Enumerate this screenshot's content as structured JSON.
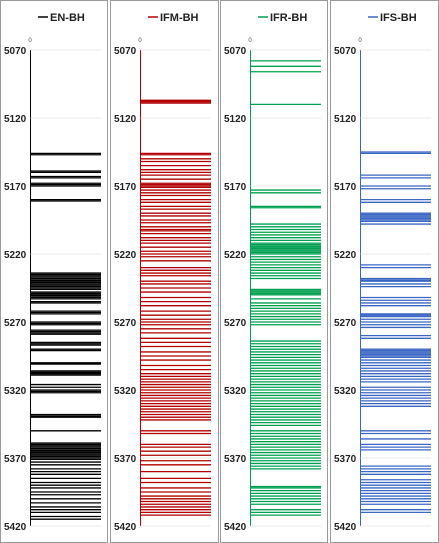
{
  "chart_data": [
    {
      "type": "event-strip",
      "legend": "EN-BH",
      "color": "#000000",
      "x_tick": "0",
      "ylim": [
        5070,
        5420
      ],
      "yticks": [
        "5070",
        "5120",
        "5170",
        "5220",
        "5270",
        "5320",
        "5370",
        "5420"
      ],
      "events": [
        5146,
        5147,
        5159,
        5160,
        5163,
        5164,
        5168,
        5169,
        5170,
        5180,
        5181,
        5234,
        5235,
        5236,
        5237,
        5238,
        5239,
        5240,
        5241,
        5242,
        5243,
        5244,
        5245,
        5246,
        5248,
        5249,
        5250,
        5251,
        5252,
        5253,
        5255,
        5256,
        5262,
        5263,
        5264,
        5270,
        5271,
        5272,
        5276,
        5277,
        5278,
        5279,
        5285,
        5286,
        5287,
        5290,
        5291,
        5300,
        5301,
        5306,
        5307,
        5308,
        5309,
        5316,
        5318,
        5320,
        5321,
        5322,
        5338,
        5339,
        5340,
        5350,
        5359,
        5360,
        5361,
        5362,
        5363,
        5364,
        5365,
        5366,
        5367,
        5368,
        5369,
        5370,
        5371,
        5373,
        5375,
        5378,
        5380,
        5382,
        5385,
        5388,
        5390,
        5392,
        5395,
        5397,
        5400,
        5403,
        5406,
        5408,
        5410,
        5413,
        5415
      ]
    },
    {
      "type": "event-strip",
      "legend": "IFM-BH",
      "color": "#b00000",
      "x_tick": "0",
      "ylim": [
        5070,
        5420
      ],
      "yticks": [
        "5070",
        "5120",
        "5170",
        "5220",
        "5270",
        "5320",
        "5370",
        "5420"
      ],
      "events": [
        5107,
        5108,
        5109,
        5146,
        5147,
        5150,
        5152,
        5155,
        5158,
        5160,
        5162,
        5165,
        5168,
        5169,
        5170,
        5171,
        5173,
        5175,
        5177,
        5180,
        5182,
        5185,
        5187,
        5190,
        5192,
        5195,
        5197,
        5200,
        5202,
        5203,
        5205,
        5208,
        5210,
        5212,
        5215,
        5218,
        5220,
        5222,
        5225,
        5230,
        5232,
        5234,
        5236,
        5240,
        5242,
        5245,
        5248,
        5252,
        5255,
        5258,
        5262,
        5265,
        5268,
        5270,
        5272,
        5275,
        5278,
        5282,
        5285,
        5288,
        5292,
        5295,
        5298,
        5302,
        5305,
        5308,
        5310,
        5312,
        5314,
        5316,
        5318,
        5320,
        5322,
        5324,
        5326,
        5328,
        5330,
        5332,
        5334,
        5336,
        5338,
        5340,
        5342,
        5350,
        5352,
        5360,
        5362,
        5365,
        5368,
        5372,
        5375,
        5380,
        5385,
        5388,
        5392,
        5395,
        5398,
        5400,
        5402,
        5404,
        5406,
        5408,
        5410,
        5412
      ]
    },
    {
      "type": "event-strip",
      "legend": "IFR-BH",
      "color": "#00a050",
      "x_tick": "0",
      "ylim": [
        5070,
        5420
      ],
      "yticks": [
        "5070",
        "5120",
        "5170",
        "5220",
        "5270",
        "5320",
        "5370",
        "5420"
      ],
      "events": [
        5078,
        5082,
        5086,
        5110,
        5173,
        5175,
        5185,
        5186,
        5198,
        5200,
        5202,
        5204,
        5206,
        5208,
        5210,
        5212,
        5213,
        5214,
        5215,
        5216,
        5217,
        5218,
        5219,
        5220,
        5222,
        5224,
        5226,
        5228,
        5230,
        5232,
        5234,
        5236,
        5238,
        5246,
        5247,
        5248,
        5249,
        5250,
        5253,
        5256,
        5258,
        5260,
        5262,
        5264,
        5266,
        5268,
        5270,
        5272,
        5284,
        5286,
        5288,
        5290,
        5292,
        5294,
        5296,
        5298,
        5300,
        5302,
        5304,
        5306,
        5308,
        5310,
        5312,
        5314,
        5316,
        5318,
        5320,
        5322,
        5324,
        5326,
        5328,
        5330,
        5332,
        5334,
        5336,
        5338,
        5340,
        5342,
        5344,
        5346,
        5350,
        5352,
        5354,
        5356,
        5358,
        5360,
        5362,
        5364,
        5366,
        5368,
        5370,
        5372,
        5374,
        5376,
        5378,
        5391,
        5392,
        5394,
        5396,
        5398,
        5400,
        5402,
        5404,
        5408,
        5410,
        5412
      ]
    },
    {
      "type": "event-strip",
      "legend": "IFS-BH",
      "color": "#3a66c4",
      "x_tick": "0",
      "ylim": [
        5070,
        5420
      ],
      "yticks": [
        "5070",
        "5120",
        "5170",
        "5220",
        "5270",
        "5320",
        "5370",
        "5420"
      ],
      "events": [
        5145,
        5146,
        5162,
        5164,
        5170,
        5172,
        5180,
        5182,
        5190,
        5191,
        5192,
        5193,
        5194,
        5195,
        5196,
        5198,
        5228,
        5230,
        5238,
        5239,
        5240,
        5242,
        5244,
        5252,
        5254,
        5256,
        5258,
        5264,
        5265,
        5266,
        5268,
        5270,
        5272,
        5274,
        5280,
        5282,
        5290,
        5291,
        5292,
        5293,
        5294,
        5295,
        5296,
        5298,
        5300,
        5302,
        5304,
        5306,
        5308,
        5310,
        5312,
        5314,
        5318,
        5320,
        5322,
        5324,
        5326,
        5328,
        5330,
        5332,
        5350,
        5352,
        5356,
        5360,
        5362,
        5364,
        5376,
        5378,
        5380,
        5382,
        5386,
        5388,
        5390,
        5392,
        5394,
        5396,
        5398,
        5400,
        5402,
        5404,
        5408,
        5410
      ]
    }
  ]
}
